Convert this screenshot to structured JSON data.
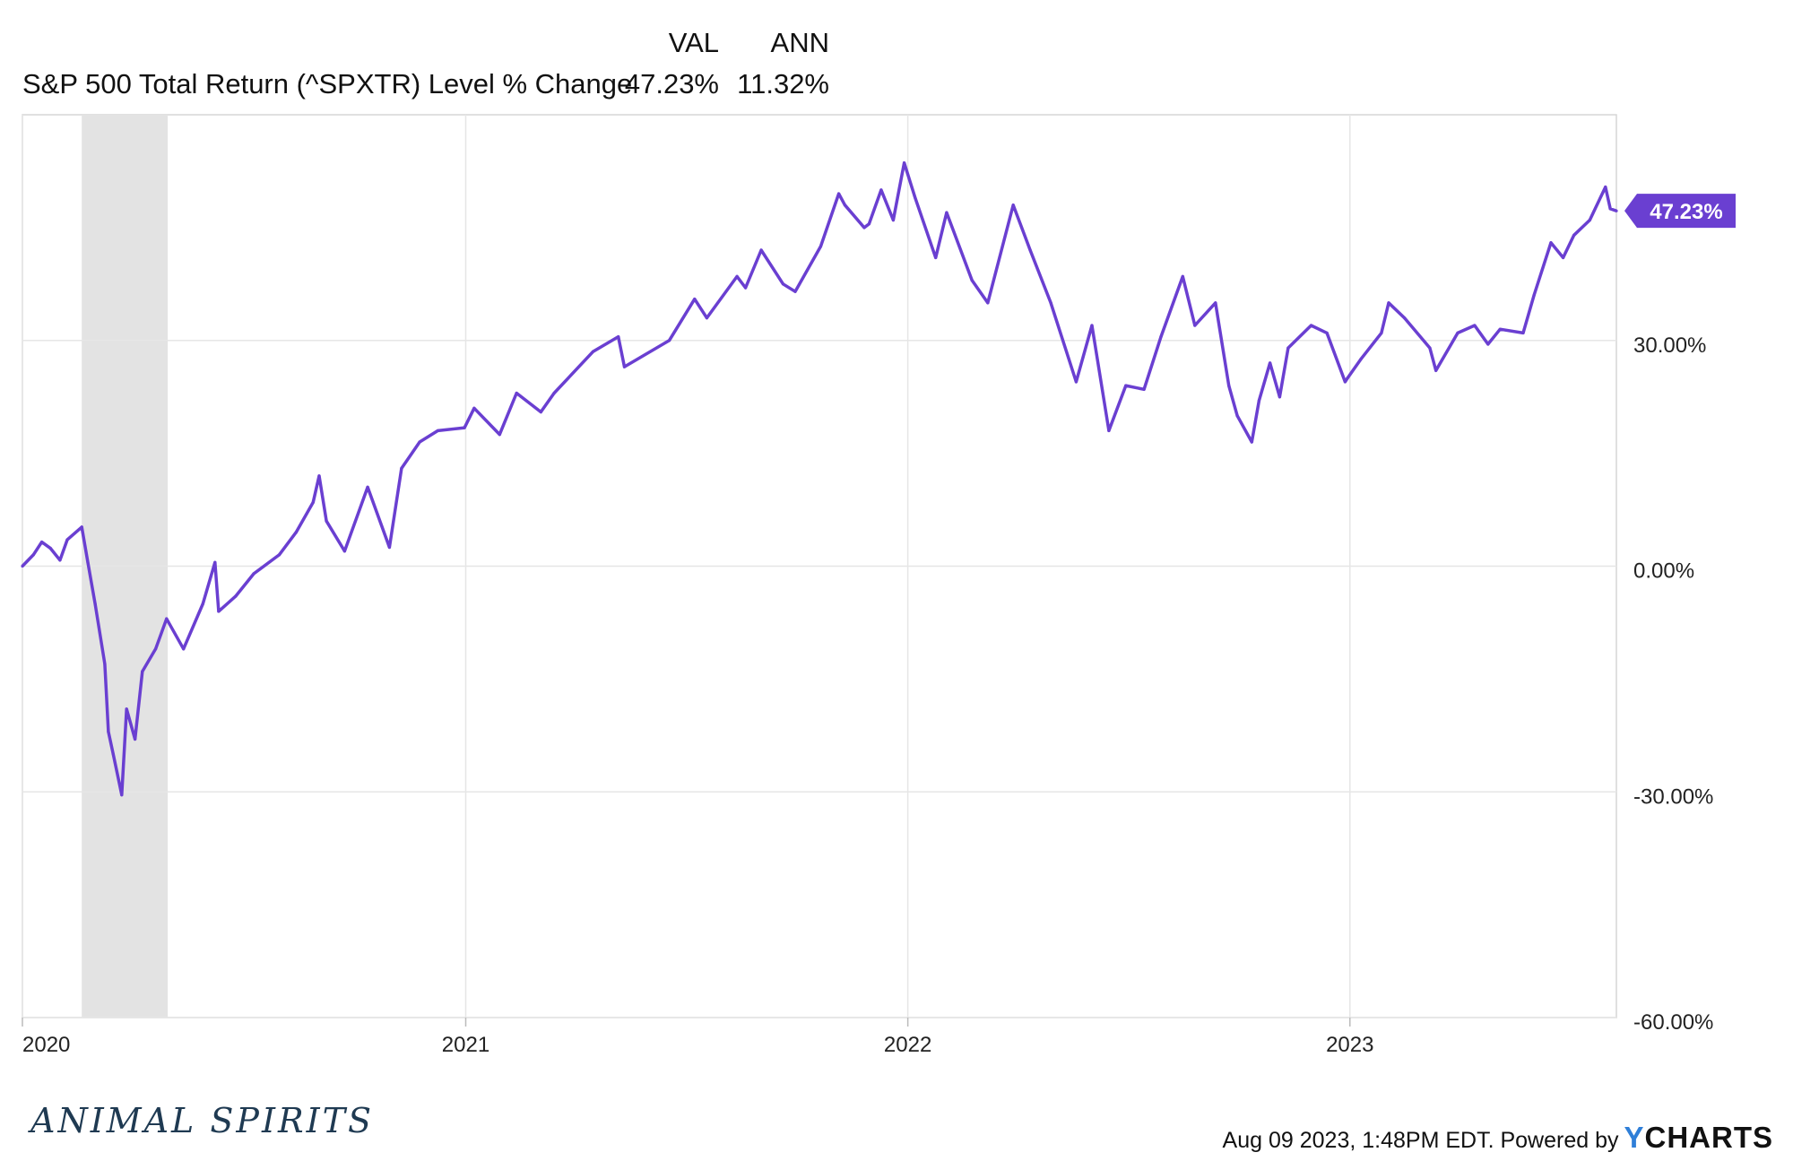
{
  "header": {
    "val_label": "VAL",
    "ann_label": "ANN",
    "series_name": "S&P 500 Total Return (^SPXTR) Level % Change",
    "val_value": "47.23%",
    "ann_value": "11.32%"
  },
  "chart_data": {
    "type": "line",
    "series": [
      {
        "name": "S&P 500 Total Return (^SPXTR) Level % Change",
        "color": "#6a3fd1",
        "points": [
          [
            "2020-01-01",
            0
          ],
          [
            "2020-01-10",
            1.5
          ],
          [
            "2020-01-17",
            3.2
          ],
          [
            "2020-01-24",
            2.4
          ],
          [
            "2020-02-01",
            0.8
          ],
          [
            "2020-02-07",
            3.5
          ],
          [
            "2020-02-19",
            5.2
          ],
          [
            "2020-02-24",
            0.5
          ],
          [
            "2020-03-01",
            -5
          ],
          [
            "2020-03-09",
            -13
          ],
          [
            "2020-03-12",
            -22
          ],
          [
            "2020-03-16",
            -25
          ],
          [
            "2020-03-23",
            -30.4
          ],
          [
            "2020-03-27",
            -19
          ],
          [
            "2020-04-03",
            -23
          ],
          [
            "2020-04-09",
            -14
          ],
          [
            "2020-04-20",
            -11
          ],
          [
            "2020-04-29",
            -7
          ],
          [
            "2020-05-13",
            -11
          ],
          [
            "2020-05-29",
            -5
          ],
          [
            "2020-06-08",
            0.5
          ],
          [
            "2020-06-11",
            -6
          ],
          [
            "2020-06-25",
            -4
          ],
          [
            "2020-07-10",
            -1
          ],
          [
            "2020-07-31",
            1.5
          ],
          [
            "2020-08-14",
            4.5
          ],
          [
            "2020-08-28",
            8.5
          ],
          [
            "2020-09-02",
            12
          ],
          [
            "2020-09-08",
            6
          ],
          [
            "2020-09-23",
            2
          ],
          [
            "2020-10-12",
            10.5
          ],
          [
            "2020-10-30",
            2.5
          ],
          [
            "2020-11-09",
            13
          ],
          [
            "2020-11-24",
            16.5
          ],
          [
            "2020-12-09",
            18
          ],
          [
            "2020-12-31",
            18.4
          ],
          [
            "2021-01-08",
            21
          ],
          [
            "2021-01-29",
            17.5
          ],
          [
            "2021-02-12",
            23
          ],
          [
            "2021-03-04",
            20.5
          ],
          [
            "2021-03-15",
            23
          ],
          [
            "2021-04-16",
            28.5
          ],
          [
            "2021-05-07",
            30.5
          ],
          [
            "2021-05-12",
            26.5
          ],
          [
            "2021-06-18",
            30
          ],
          [
            "2021-07-09",
            35.5
          ],
          [
            "2021-07-19",
            33
          ],
          [
            "2021-08-13",
            38.5
          ],
          [
            "2021-08-20",
            37
          ],
          [
            "2021-09-02",
            42
          ],
          [
            "2021-09-20",
            37.5
          ],
          [
            "2021-09-30",
            36.5
          ],
          [
            "2021-10-21",
            42.5
          ],
          [
            "2021-11-05",
            49.5
          ],
          [
            "2021-11-10",
            48
          ],
          [
            "2021-11-26",
            45
          ],
          [
            "2021-11-30",
            45.5
          ],
          [
            "2021-12-10",
            50
          ],
          [
            "2021-12-20",
            46
          ],
          [
            "2021-12-29",
            53.6
          ],
          [
            "2022-01-07",
            49
          ],
          [
            "2022-01-24",
            41
          ],
          [
            "2022-02-02",
            47
          ],
          [
            "2022-02-23",
            38
          ],
          [
            "2022-03-08",
            35
          ],
          [
            "2022-03-29",
            48
          ],
          [
            "2022-04-12",
            42
          ],
          [
            "2022-04-29",
            35
          ],
          [
            "2022-05-20",
            24.5
          ],
          [
            "2022-06-02",
            32
          ],
          [
            "2022-06-16",
            18
          ],
          [
            "2022-06-30",
            24
          ],
          [
            "2022-07-15",
            23.5
          ],
          [
            "2022-07-29",
            30.5
          ],
          [
            "2022-08-16",
            38.5
          ],
          [
            "2022-08-26",
            32
          ],
          [
            "2022-09-12",
            35
          ],
          [
            "2022-09-23",
            24
          ],
          [
            "2022-09-30",
            20
          ],
          [
            "2022-10-12",
            16.5
          ],
          [
            "2022-10-18",
            22
          ],
          [
            "2022-10-27",
            27
          ],
          [
            "2022-11-04",
            22.5
          ],
          [
            "2022-11-11",
            29
          ],
          [
            "2022-11-30",
            32
          ],
          [
            "2022-12-13",
            31
          ],
          [
            "2022-12-28",
            24.5
          ],
          [
            "2022-12-30",
            25
          ],
          [
            "2023-01-10",
            27.5
          ],
          [
            "2023-01-27",
            31
          ],
          [
            "2023-02-02",
            35
          ],
          [
            "2023-02-15",
            33
          ],
          [
            "2023-03-08",
            29
          ],
          [
            "2023-03-13",
            26
          ],
          [
            "2023-03-31",
            31
          ],
          [
            "2023-04-14",
            32
          ],
          [
            "2023-04-25",
            29.5
          ],
          [
            "2023-05-05",
            31.5
          ],
          [
            "2023-05-24",
            31
          ],
          [
            "2023-06-02",
            36
          ],
          [
            "2023-06-16",
            43
          ],
          [
            "2023-06-26",
            41
          ],
          [
            "2023-07-05",
            44
          ],
          [
            "2023-07-18",
            46
          ],
          [
            "2023-07-31",
            50.4
          ],
          [
            "2023-08-04",
            47.5
          ],
          [
            "2023-08-09",
            47.23
          ]
        ]
      }
    ],
    "x_tick_labels": [
      "2020",
      "2021",
      "2022",
      "2023"
    ],
    "y_tick_labels": [
      "30.00%",
      "0.00%",
      "-30.00%",
      "-60.00%"
    ],
    "y_ticks": [
      30,
      0,
      -30,
      -60
    ],
    "ylim": [
      -60,
      60
    ],
    "xlim": [
      "2020-01-01",
      "2023-08-09"
    ],
    "shaded_region": {
      "start": "2020-02-19",
      "end": "2020-04-30",
      "color": "#e3e3e3"
    },
    "end_value_label": "47.23%",
    "grid": true,
    "legend": "top-left"
  },
  "watermark": "ANIMAL SPIRITS",
  "footer": {
    "timestamp_text": "Aug 09 2023, 1:48PM EDT. Powered by",
    "brand_y": "Y",
    "brand_rest": "CHARTS"
  }
}
